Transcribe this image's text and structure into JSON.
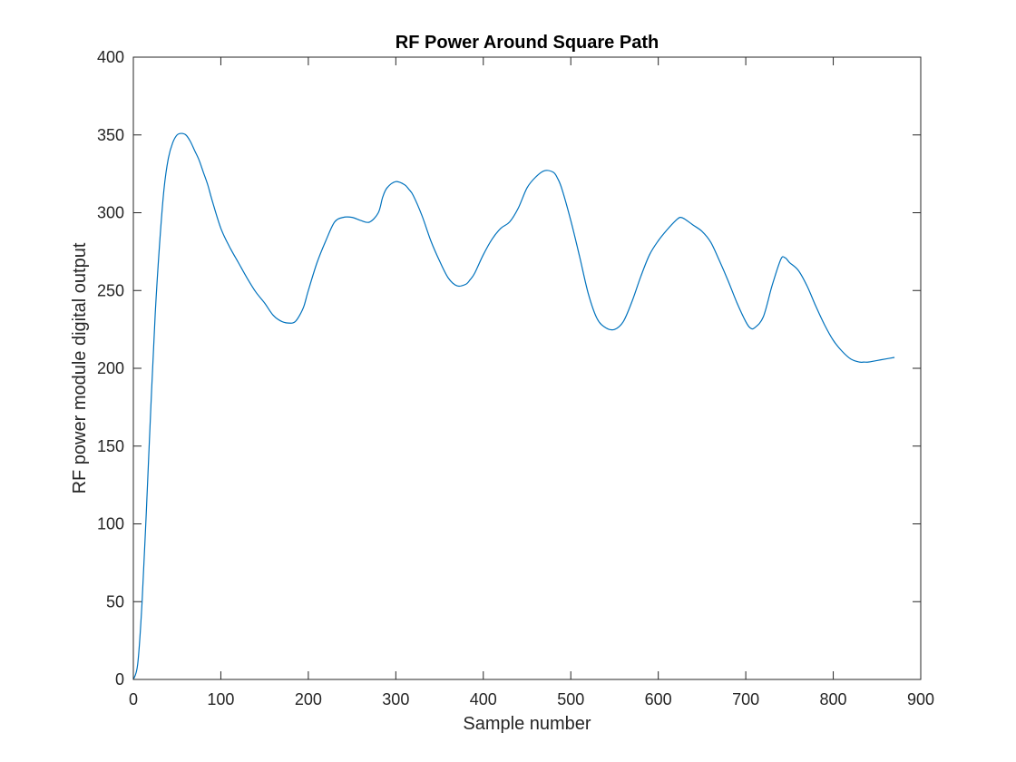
{
  "chart_data": {
    "type": "line",
    "title": "RF Power Around Square Path",
    "xlabel": "Sample number",
    "ylabel": "RF power module digital output",
    "xlim": [
      0,
      900
    ],
    "ylim": [
      0,
      400
    ],
    "xticks": [
      0,
      100,
      200,
      300,
      400,
      500,
      600,
      700,
      800,
      900
    ],
    "yticks": [
      0,
      50,
      100,
      150,
      200,
      250,
      300,
      350,
      400
    ],
    "grid": false,
    "line_color": "#0072BD",
    "series": [
      {
        "x": [
          0,
          5,
          10,
          15,
          20,
          25,
          30,
          35,
          40,
          45,
          50,
          55,
          60,
          65,
          70,
          75,
          80,
          85,
          90,
          100,
          110,
          120,
          130,
          140,
          150,
          160,
          170,
          180,
          185,
          190,
          195,
          200,
          210,
          220,
          230,
          240,
          250,
          260,
          270,
          280,
          285,
          290,
          300,
          310,
          315,
          320,
          330,
          340,
          350,
          360,
          370,
          380,
          385,
          390,
          400,
          410,
          420,
          430,
          440,
          450,
          460,
          470,
          480,
          485,
          490,
          500,
          510,
          520,
          530,
          540,
          550,
          560,
          570,
          580,
          590,
          600,
          610,
          620,
          625,
          630,
          640,
          650,
          660,
          670,
          680,
          690,
          700,
          705,
          710,
          720,
          730,
          740,
          745,
          750,
          760,
          770,
          780,
          790,
          800,
          810,
          820,
          830,
          835,
          840,
          850,
          860,
          870
        ],
        "y": [
          0,
          10,
          50,
          110,
          175,
          235,
          280,
          315,
          335,
          345,
          350,
          351,
          350,
          346,
          340,
          334,
          326,
          318,
          308,
          290,
          278,
          268,
          258,
          249,
          242,
          234,
          230,
          229,
          230,
          234,
          240,
          250,
          268,
          282,
          294,
          297,
          297,
          295,
          294,
          300,
          310,
          316,
          320,
          318,
          315,
          311,
          298,
          282,
          269,
          258,
          253,
          254,
          257,
          261,
          273,
          283,
          290,
          294,
          303,
          316,
          323,
          327,
          326,
          322,
          315,
          295,
          272,
          248,
          232,
          226,
          225,
          230,
          243,
          259,
          273,
          282,
          289,
          295,
          297,
          296,
          292,
          288,
          281,
          269,
          256,
          242,
          230,
          226,
          226,
          233,
          253,
          270,
          271,
          268,
          263,
          253,
          240,
          228,
          218,
          211,
          206,
          204,
          204,
          204,
          205,
          206,
          207
        ]
      }
    ]
  }
}
